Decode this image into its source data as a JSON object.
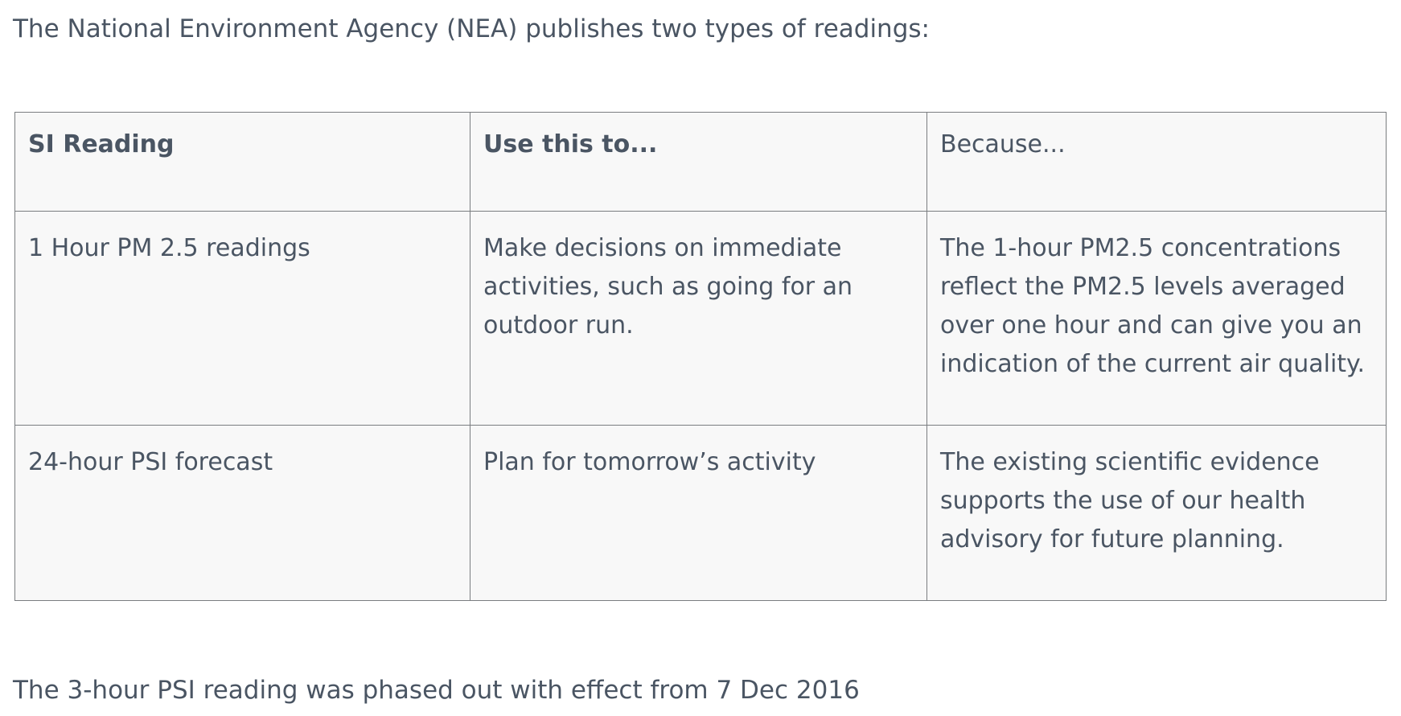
{
  "intro_text": "The National Environment Agency (NEA) publishes two types of readings:",
  "table": {
    "headers": [
      "SI Reading",
      "Use this to...",
      "Because..."
    ],
    "rows": [
      [
        "1 Hour PM 2.5 readings",
        "Make decisions on immediate activities, such as going for an outdoor run.",
        "The 1-hour PM2.5 concentrations reflect the PM2.5 levels averaged over one hour and can give you an indication of the current air quality."
      ],
      [
        "24-hour PSI forecast",
        "Plan for tomorrow’s activity",
        "The existing scientific evidence supports the use of our health advisory for future planning."
      ]
    ]
  },
  "footer_text": "The 3-hour PSI reading was phased out with effect from 7 Dec 2016"
}
